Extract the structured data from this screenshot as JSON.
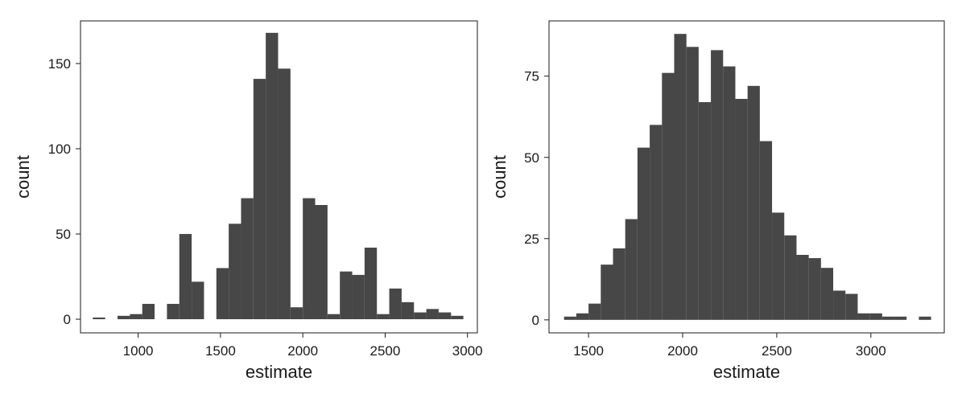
{
  "chart_data": [
    {
      "type": "bar",
      "xlabel": "estimate",
      "ylabel": "count",
      "xlim": [
        650,
        3060
      ],
      "ylim": [
        -8,
        175
      ],
      "xticks": [
        1000,
        1500,
        2000,
        2500,
        3000
      ],
      "yticks": [
        0,
        50,
        100,
        150
      ],
      "grid": false,
      "bin_width": 75,
      "bins": [
        {
          "start": 725,
          "count": 1
        },
        {
          "start": 875,
          "count": 2
        },
        {
          "start": 950,
          "count": 3
        },
        {
          "start": 1025,
          "count": 9
        },
        {
          "start": 1175,
          "count": 9
        },
        {
          "start": 1250,
          "count": 50
        },
        {
          "start": 1325,
          "count": 22
        },
        {
          "start": 1475,
          "count": 30
        },
        {
          "start": 1550,
          "count": 56
        },
        {
          "start": 1625,
          "count": 71
        },
        {
          "start": 1700,
          "count": 141
        },
        {
          "start": 1775,
          "count": 168
        },
        {
          "start": 1850,
          "count": 147
        },
        {
          "start": 1925,
          "count": 7
        },
        {
          "start": 2000,
          "count": 71
        },
        {
          "start": 2075,
          "count": 67
        },
        {
          "start": 2150,
          "count": 3
        },
        {
          "start": 2225,
          "count": 28
        },
        {
          "start": 2300,
          "count": 26
        },
        {
          "start": 2375,
          "count": 42
        },
        {
          "start": 2450,
          "count": 3
        },
        {
          "start": 2525,
          "count": 18
        },
        {
          "start": 2600,
          "count": 10
        },
        {
          "start": 2675,
          "count": 4
        },
        {
          "start": 2750,
          "count": 6
        },
        {
          "start": 2825,
          "count": 4
        },
        {
          "start": 2900,
          "count": 2
        }
      ]
    },
    {
      "type": "bar",
      "xlabel": "estimate",
      "ylabel": "count",
      "xlim": [
        1290,
        3390
      ],
      "ylim": [
        -4,
        92
      ],
      "xticks": [
        1500,
        2000,
        2500,
        3000
      ],
      "yticks": [
        0,
        25,
        50,
        75
      ],
      "grid": false,
      "bin_width": 65,
      "bins": [
        {
          "start": 1370,
          "count": 1
        },
        {
          "start": 1435,
          "count": 2
        },
        {
          "start": 1500,
          "count": 5
        },
        {
          "start": 1565,
          "count": 17
        },
        {
          "start": 1630,
          "count": 22
        },
        {
          "start": 1695,
          "count": 31
        },
        {
          "start": 1760,
          "count": 53
        },
        {
          "start": 1825,
          "count": 60
        },
        {
          "start": 1890,
          "count": 76
        },
        {
          "start": 1955,
          "count": 88
        },
        {
          "start": 2020,
          "count": 84
        },
        {
          "start": 2085,
          "count": 67
        },
        {
          "start": 2150,
          "count": 83
        },
        {
          "start": 2215,
          "count": 78
        },
        {
          "start": 2280,
          "count": 68
        },
        {
          "start": 2345,
          "count": 72
        },
        {
          "start": 2410,
          "count": 55
        },
        {
          "start": 2475,
          "count": 33
        },
        {
          "start": 2540,
          "count": 26
        },
        {
          "start": 2605,
          "count": 20
        },
        {
          "start": 2670,
          "count": 19
        },
        {
          "start": 2735,
          "count": 16
        },
        {
          "start": 2800,
          "count": 9
        },
        {
          "start": 2865,
          "count": 8
        },
        {
          "start": 2930,
          "count": 2
        },
        {
          "start": 2995,
          "count": 2
        },
        {
          "start": 3060,
          "count": 1
        },
        {
          "start": 3125,
          "count": 1
        },
        {
          "start": 3255,
          "count": 1
        }
      ]
    }
  ],
  "style": {
    "bar_color": "#474747",
    "frame_color": "#1a1a1a",
    "background": "#ffffff"
  }
}
